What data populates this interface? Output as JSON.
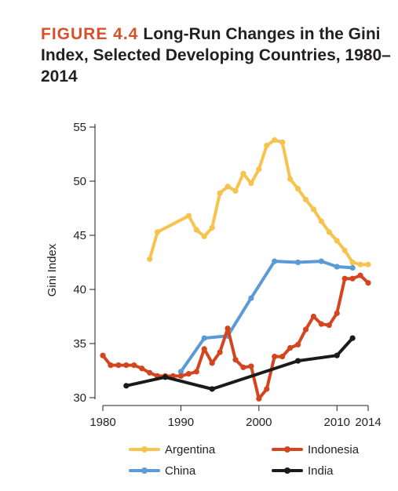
{
  "figure": {
    "label": "FIGURE 4.4",
    "title": "Long-Run Changes in the Gini Index, Selected Developing Countries, 1980–2014"
  },
  "chart_data": {
    "type": "line",
    "ylabel": "Gini Index",
    "xlabel": "",
    "xlim": [
      1980,
      2014
    ],
    "ylim": [
      30,
      55
    ],
    "x_ticks": [
      1980,
      1990,
      2000,
      2010,
      2014
    ],
    "x_tick_labels": [
      "1980",
      "1990",
      "2000",
      "2010",
      "2014"
    ],
    "y_ticks": [
      30,
      35,
      40,
      45,
      50,
      55
    ],
    "y_tick_labels": [
      "30",
      "35",
      "40",
      "45",
      "50",
      "55"
    ],
    "grid": false,
    "legend_position": "bottom",
    "series": [
      {
        "name": "Argentina",
        "color": "#f7c34f",
        "points": [
          [
            1986,
            42.8
          ],
          [
            1987,
            45.3
          ],
          [
            1991,
            46.8
          ],
          [
            1992,
            45.5
          ],
          [
            1993,
            44.9
          ],
          [
            1994,
            45.7
          ],
          [
            1995,
            48.9
          ],
          [
            1996,
            49.5
          ],
          [
            1997,
            49.1
          ],
          [
            1998,
            50.7
          ],
          [
            1999,
            49.8
          ],
          [
            2000,
            51.1
          ],
          [
            2001,
            53.3
          ],
          [
            2002,
            53.8
          ],
          [
            2003,
            53.6
          ],
          [
            2004,
            50.2
          ],
          [
            2005,
            49.3
          ],
          [
            2006,
            48.3
          ],
          [
            2007,
            47.4
          ],
          [
            2008,
            46.3
          ],
          [
            2009,
            45.3
          ],
          [
            2010,
            44.5
          ],
          [
            2011,
            43.6
          ],
          [
            2012,
            42.5
          ],
          [
            2013,
            42.3
          ],
          [
            2014,
            42.3
          ]
        ]
      },
      {
        "name": "China",
        "color": "#5b9bd5",
        "points": [
          [
            1990,
            32.4
          ],
          [
            1993,
            35.5
          ],
          [
            1996,
            35.7
          ],
          [
            1999,
            39.2
          ],
          [
            2002,
            42.6
          ],
          [
            2005,
            42.5
          ],
          [
            2008,
            42.6
          ],
          [
            2010,
            42.1
          ],
          [
            2012,
            42.0
          ]
        ]
      },
      {
        "name": "Indonesia",
        "color": "#d4451f",
        "points": [
          [
            1980,
            33.9
          ],
          [
            1981,
            33.0
          ],
          [
            1982,
            33.0
          ],
          [
            1983,
            33.0
          ],
          [
            1984,
            33.0
          ],
          [
            1985,
            32.7
          ],
          [
            1986,
            32.3
          ],
          [
            1987,
            32.0
          ],
          [
            1988,
            32.0
          ],
          [
            1989,
            32.0
          ],
          [
            1990,
            32.0
          ],
          [
            1991,
            32.2
          ],
          [
            1992,
            32.4
          ],
          [
            1993,
            34.5
          ],
          [
            1994,
            33.2
          ],
          [
            1995,
            34.2
          ],
          [
            1996,
            36.4
          ],
          [
            1997,
            33.5
          ],
          [
            1998,
            32.8
          ],
          [
            1999,
            32.9
          ],
          [
            2000,
            29.9
          ],
          [
            2001,
            30.8
          ],
          [
            2002,
            33.8
          ],
          [
            2003,
            33.8
          ],
          [
            2004,
            34.6
          ],
          [
            2005,
            34.9
          ],
          [
            2006,
            36.3
          ],
          [
            2007,
            37.5
          ],
          [
            2008,
            36.8
          ],
          [
            2009,
            36.7
          ],
          [
            2010,
            37.8
          ],
          [
            2011,
            41.0
          ],
          [
            2012,
            41.0
          ],
          [
            2013,
            41.3
          ],
          [
            2014,
            40.6
          ]
        ]
      },
      {
        "name": "India",
        "color": "#1a1a1a",
        "points": [
          [
            1983,
            31.1
          ],
          [
            1988,
            31.9
          ],
          [
            1994,
            30.8
          ],
          [
            2005,
            33.4
          ],
          [
            2010,
            33.9
          ],
          [
            2012,
            35.5
          ]
        ]
      }
    ]
  }
}
